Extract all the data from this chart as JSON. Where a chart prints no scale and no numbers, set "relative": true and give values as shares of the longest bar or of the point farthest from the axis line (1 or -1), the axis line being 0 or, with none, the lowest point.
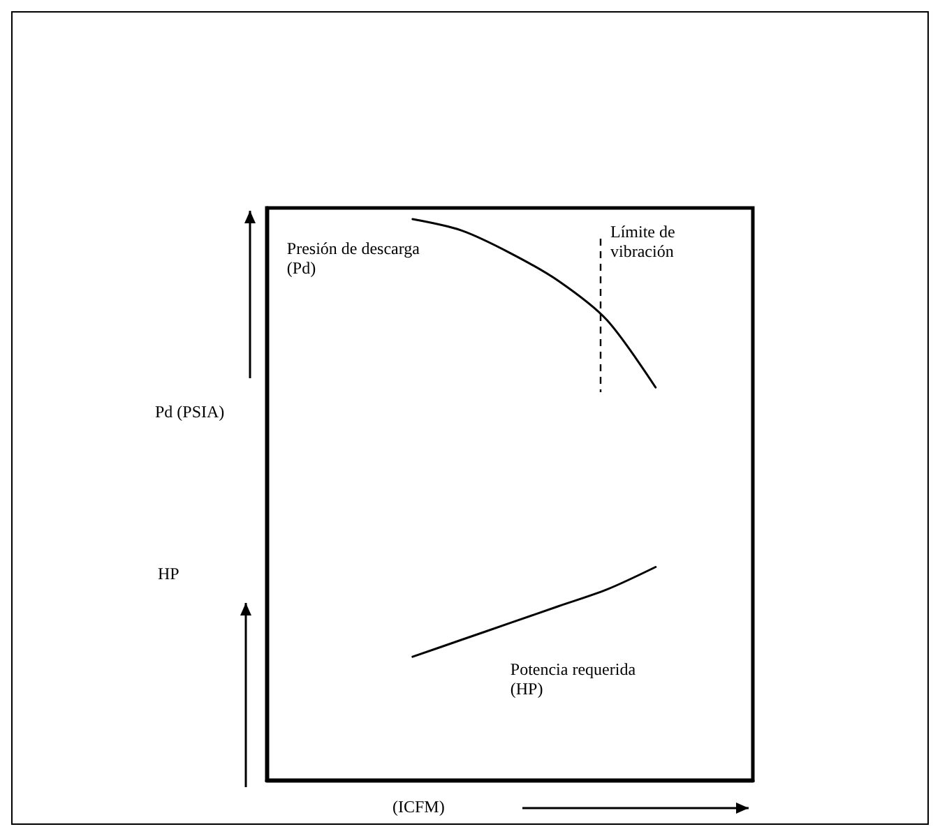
{
  "chart_data": {
    "type": "line",
    "relative": true,
    "xlabel": "(ICFM)",
    "ylabel": "Pd (PSIA)",
    "annotations": [
      "HP",
      "Límite de vibración"
    ],
    "categories": [
      null,
      null,
      null,
      null,
      null,
      null,
      null,
      null,
      null,
      null,
      null
    ],
    "series": [
      {
        "name": "Presión de descarga (Pd)",
        "color": "#000000",
        "values": [
          null,
          null,
          null,
          1.0,
          0.98,
          0.94,
          0.89,
          0.82,
          0.7,
          null,
          null
        ]
      },
      {
        "name": "Potencia requerida (HP)",
        "color": "#000000",
        "values": [
          null,
          null,
          null,
          0.22,
          0.25,
          0.28,
          0.31,
          0.34,
          0.38,
          null,
          null
        ]
      }
    ],
    "grid": false,
    "legend": false,
    "marker": "none",
    "line_style": "solid"
  }
}
